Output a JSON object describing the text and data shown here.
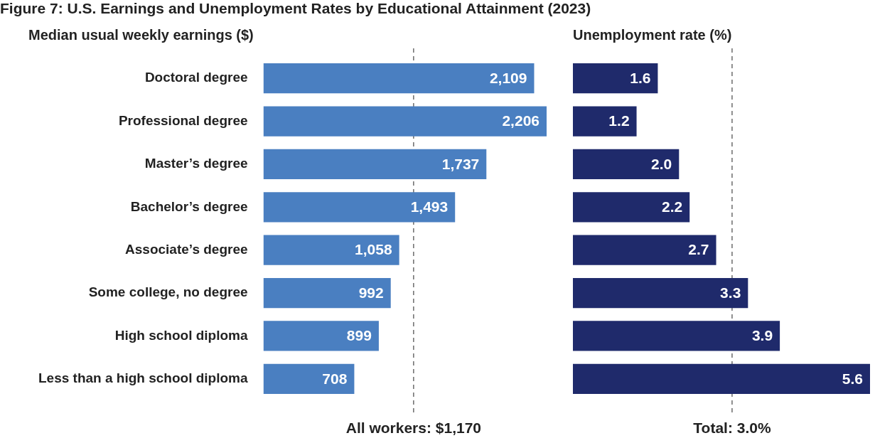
{
  "chart_data": [
    {
      "type": "bar",
      "orientation": "horizontal",
      "title": "Figure 7: U.S. Earnings and Unemployment Rates by Educational Attainment (2023)",
      "subtitle": "Median usual weekly earnings ($)",
      "categories": [
        "Doctoral degree",
        "Professional degree",
        "Master’s degree",
        "Bachelor’s degree",
        "Associate’s degree",
        "Some college, no degree",
        "High school diploma",
        "Less than a high school diploma"
      ],
      "values": [
        2109,
        2206,
        1737,
        1493,
        1058,
        992,
        899,
        708
      ],
      "value_labels": [
        "2,109",
        "2,206",
        "1,737",
        "1,493",
        "1,058",
        "992",
        "899",
        "708"
      ],
      "color": "#4a7fc1",
      "tick_labels": "y",
      "ref_lines": [
        {
          "axis": "x",
          "value": 1170,
          "label": "All workers: $1,170",
          "color": "#555555",
          "line_style": "dashed"
        }
      ]
    },
    {
      "type": "bar",
      "orientation": "horizontal",
      "subtitle": "Unemployment rate (%)",
      "categories": [
        null,
        null,
        null,
        null,
        null,
        null,
        null,
        null
      ],
      "values": [
        1.6,
        1.2,
        2.0,
        2.2,
        2.7,
        3.3,
        3.9,
        5.6
      ],
      "value_labels": [
        "1.6",
        "1.2",
        "2.0",
        "2.2",
        "2.7",
        "3.3",
        "3.9",
        "5.6"
      ],
      "color": "#1f2a6b",
      "tick_labels": false,
      "ref_lines": [
        {
          "axis": "x",
          "value": 3.0,
          "label": "Total: 3.0%",
          "color": "#555555",
          "line_style": "dashed"
        }
      ]
    }
  ]
}
